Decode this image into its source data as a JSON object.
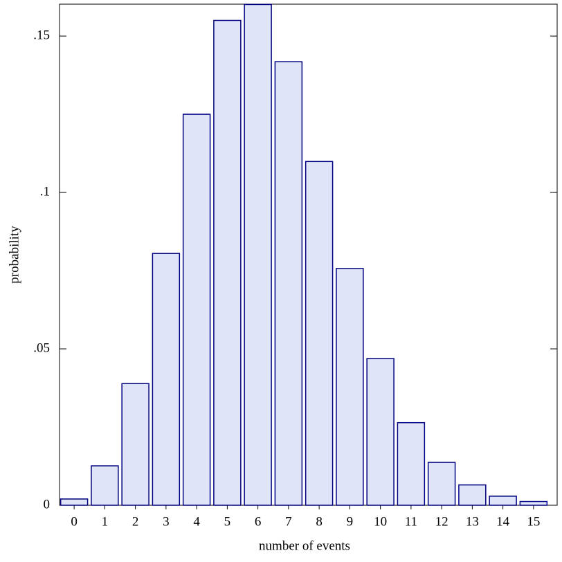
{
  "chart_data": {
    "type": "bar",
    "xlabel": "number of events",
    "ylabel": "probability",
    "categories": [
      "0",
      "1",
      "2",
      "3",
      "4",
      "5",
      "6",
      "7",
      "8",
      "9",
      "10",
      "11",
      "12",
      "13",
      "14",
      "15"
    ],
    "values": [
      0.002,
      0.0126,
      0.0389,
      0.0805,
      0.125,
      0.155,
      0.1601,
      0.1418,
      0.1099,
      0.0757,
      0.0469,
      0.0264,
      0.0137,
      0.0065,
      0.0029,
      0.0012
    ],
    "color": "#e0e4f8",
    "edge_color": "#000080",
    "ylim": [
      0,
      0.1602
    ],
    "yticks": [
      {
        "value": 0,
        "label": "0"
      },
      {
        "value": 0.05,
        "label": ".05"
      },
      {
        "value": 0.1,
        "label": ".1"
      },
      {
        "value": 0.15,
        "label": ".15"
      }
    ]
  }
}
